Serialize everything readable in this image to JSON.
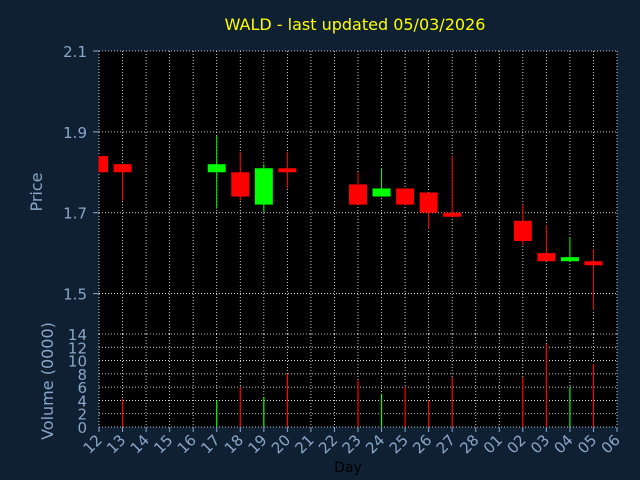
{
  "chart_data": {
    "type": "candlestick",
    "title": "WALD - last updated 05/03/2026",
    "xlabel": "Day",
    "colors": {
      "background": "#0f2033",
      "plot": "#000000",
      "up": "#00ff00",
      "down": "#ff0000",
      "grid": "#ffffff",
      "text": "#8aa6c8",
      "title": "#ffff00"
    },
    "x_ticks": [
      "12",
      "13",
      "14",
      "15",
      "16",
      "17",
      "18",
      "19",
      "20",
      "21",
      "22",
      "23",
      "24",
      "25",
      "26",
      "27",
      "28",
      "01",
      "02",
      "03",
      "04",
      "05",
      "06"
    ],
    "price_panel": {
      "ylabel": "Price",
      "ylim": [
        1.4,
        2.1
      ],
      "yticks": [
        1.5,
        1.7,
        1.9,
        2.1
      ],
      "ytick_labels": [
        "1.5",
        "1.7",
        "1.9",
        "2.1"
      ],
      "candles": [
        {
          "day": "12",
          "open": 1.84,
          "high": 1.84,
          "low": 1.8,
          "close": 1.8
        },
        {
          "day": "13",
          "open": 1.82,
          "high": 1.82,
          "low": 1.73,
          "close": 1.8
        },
        {
          "day": "17",
          "open": 1.8,
          "high": 1.89,
          "low": 1.71,
          "close": 1.82
        },
        {
          "day": "18",
          "open": 1.8,
          "high": 1.85,
          "low": 1.73,
          "close": 1.74
        },
        {
          "day": "19",
          "open": 1.72,
          "high": 1.82,
          "low": 1.7,
          "close": 1.81
        },
        {
          "day": "20",
          "open": 1.81,
          "high": 1.85,
          "low": 1.76,
          "close": 1.8
        },
        {
          "day": "23",
          "open": 1.77,
          "high": 1.8,
          "low": 1.72,
          "close": 1.72
        },
        {
          "day": "24",
          "open": 1.74,
          "high": 1.81,
          "low": 1.74,
          "close": 1.76
        },
        {
          "day": "25",
          "open": 1.76,
          "high": 1.76,
          "low": 1.72,
          "close": 1.72
        },
        {
          "day": "26",
          "open": 1.75,
          "high": 1.75,
          "low": 1.66,
          "close": 1.7
        },
        {
          "day": "27",
          "open": 1.7,
          "high": 1.84,
          "low": 1.69,
          "close": 1.69
        },
        {
          "day": "02",
          "open": 1.68,
          "high": 1.72,
          "low": 1.62,
          "close": 1.63
        },
        {
          "day": "03",
          "open": 1.6,
          "high": 1.67,
          "low": 1.58,
          "close": 1.58
        },
        {
          "day": "04",
          "open": 1.58,
          "high": 1.64,
          "low": 1.58,
          "close": 1.59
        },
        {
          "day": "05",
          "open": 1.58,
          "high": 1.61,
          "low": 1.46,
          "close": 1.57
        }
      ]
    },
    "volume_panel": {
      "ylabel": "Volume (0000)",
      "ylim": [
        0,
        14
      ],
      "yticks": [
        0,
        2,
        4,
        6,
        8,
        10,
        12,
        14
      ],
      "ytick_labels": [
        "0",
        "2",
        "4",
        "6",
        "8",
        "10",
        "12",
        "14"
      ],
      "bars": [
        {
          "day": "13",
          "value": 4.2,
          "direction": "down"
        },
        {
          "day": "17",
          "value": 4.0,
          "direction": "up"
        },
        {
          "day": "18",
          "value": 6.0,
          "direction": "down"
        },
        {
          "day": "19",
          "value": 4.5,
          "direction": "up"
        },
        {
          "day": "20",
          "value": 8.0,
          "direction": "down"
        },
        {
          "day": "23",
          "value": 7.0,
          "direction": "down"
        },
        {
          "day": "24",
          "value": 5.0,
          "direction": "up"
        },
        {
          "day": "25",
          "value": 6.0,
          "direction": "down"
        },
        {
          "day": "26",
          "value": 4.0,
          "direction": "down"
        },
        {
          "day": "27",
          "value": 7.5,
          "direction": "down"
        },
        {
          "day": "02",
          "value": 7.5,
          "direction": "down"
        },
        {
          "day": "03",
          "value": 12.5,
          "direction": "down"
        },
        {
          "day": "04",
          "value": 6.0,
          "direction": "up"
        },
        {
          "day": "05",
          "value": 9.5,
          "direction": "down"
        }
      ]
    }
  }
}
